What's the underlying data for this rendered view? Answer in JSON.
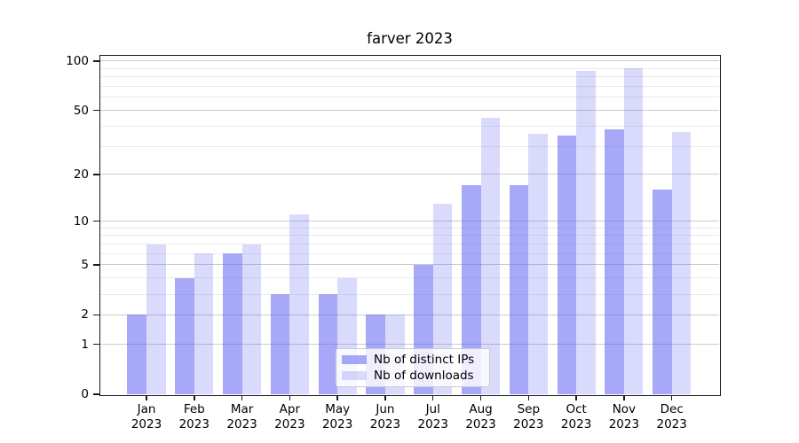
{
  "figure": {
    "title": "farver 2023"
  },
  "chart_data": {
    "type": "bar",
    "title": "farver 2023",
    "categories": [
      "Jan 2023",
      "Feb 2023",
      "Mar 2023",
      "Apr 2023",
      "May 2023",
      "Jun 2023",
      "Jul 2023",
      "Aug 2023",
      "Sep 2023",
      "Oct 2023",
      "Nov 2023",
      "Dec 2023"
    ],
    "series": [
      {
        "name": "Nb of distinct IPs",
        "values": [
          2,
          4,
          6,
          3,
          3,
          2,
          5,
          17,
          17,
          35,
          38,
          16
        ],
        "color": "rgba(100,100,245,0.56)"
      },
      {
        "name": "Nb of downloads",
        "values": [
          7,
          6,
          7,
          11,
          4,
          2,
          13,
          45,
          36,
          87,
          90,
          37
        ],
        "color": "rgba(100,100,245,0.24)"
      }
    ],
    "xlabel": "",
    "ylabel": "",
    "yscale": "log1p",
    "ylim": [
      0,
      108
    ],
    "y_major_ticks": [
      0,
      1,
      2,
      5,
      10,
      20,
      50,
      100
    ],
    "y_minor_gridlines": [
      3,
      4,
      6,
      7,
      8,
      9,
      30,
      40,
      60,
      70,
      80,
      90
    ],
    "grid": true,
    "legend_position": "lower center"
  },
  "colors": {
    "bar_primary": "rgba(100,100,245,0.56)",
    "bar_secondary": "rgba(100,100,245,0.24)",
    "grid_major": "#cbcbcb",
    "grid_minor": "#eaeaec",
    "axis": "#1a1a1a",
    "text": "#000000",
    "legend_border": "#cccccc",
    "legend_bg": "rgba(255,255,255,0.8)"
  }
}
